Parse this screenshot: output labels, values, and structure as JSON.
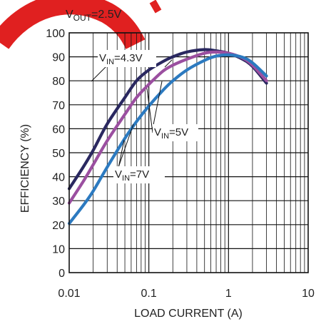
{
  "chart_data": {
    "type": "line",
    "title": {
      "main": "V",
      "sub": "OUT",
      "rest": "=2.5V"
    },
    "xlabel": "LOAD CURRENT (A)",
    "ylabel": "EFFICIENCY (%)",
    "x_scale": "log",
    "xlim": [
      0.01,
      10
    ],
    "ylim": [
      0,
      100
    ],
    "x_ticks": [
      "0.01",
      "0.1",
      "1",
      "10"
    ],
    "y_ticks": [
      "0",
      "10",
      "20",
      "30",
      "40",
      "50",
      "60",
      "70",
      "80",
      "90",
      "100"
    ],
    "grid": true,
    "series": [
      {
        "name": {
          "main": "V",
          "sub": "IN",
          "rest": "=4.3V"
        },
        "color": "#2a2860",
        "x": [
          0.01,
          0.015,
          0.02,
          0.03,
          0.05,
          0.07,
          0.1,
          0.15,
          0.2,
          0.3,
          0.5,
          0.7,
          1,
          1.5,
          2,
          3
        ],
        "y": [
          35,
          44,
          51,
          62,
          73,
          80,
          84.5,
          88,
          90,
          92,
          93,
          92.5,
          91.5,
          89,
          86,
          79
        ]
      },
      {
        "name": {
          "main": "V",
          "sub": "IN",
          "rest": "=5V"
        },
        "color": "#9b4fa0",
        "x": [
          0.01,
          0.015,
          0.02,
          0.03,
          0.05,
          0.07,
          0.1,
          0.15,
          0.2,
          0.3,
          0.5,
          0.7,
          1,
          1.5,
          2,
          3
        ],
        "y": [
          29,
          38,
          45,
          55,
          66,
          73,
          78.5,
          84,
          86.5,
          89,
          91.5,
          92,
          91.5,
          89.5,
          86.5,
          80
        ]
      },
      {
        "name": {
          "main": "V",
          "sub": "IN",
          "rest": "=7V"
        },
        "color": "#2c7ac0",
        "x": [
          0.01,
          0.015,
          0.02,
          0.03,
          0.05,
          0.07,
          0.1,
          0.15,
          0.2,
          0.3,
          0.5,
          0.7,
          1,
          1.5,
          2,
          3
        ],
        "y": [
          20.5,
          28,
          34,
          44,
          56,
          63,
          69.5,
          76,
          80,
          84.5,
          88.5,
          90.3,
          90.8,
          89.8,
          87.5,
          82
        ]
      }
    ]
  }
}
